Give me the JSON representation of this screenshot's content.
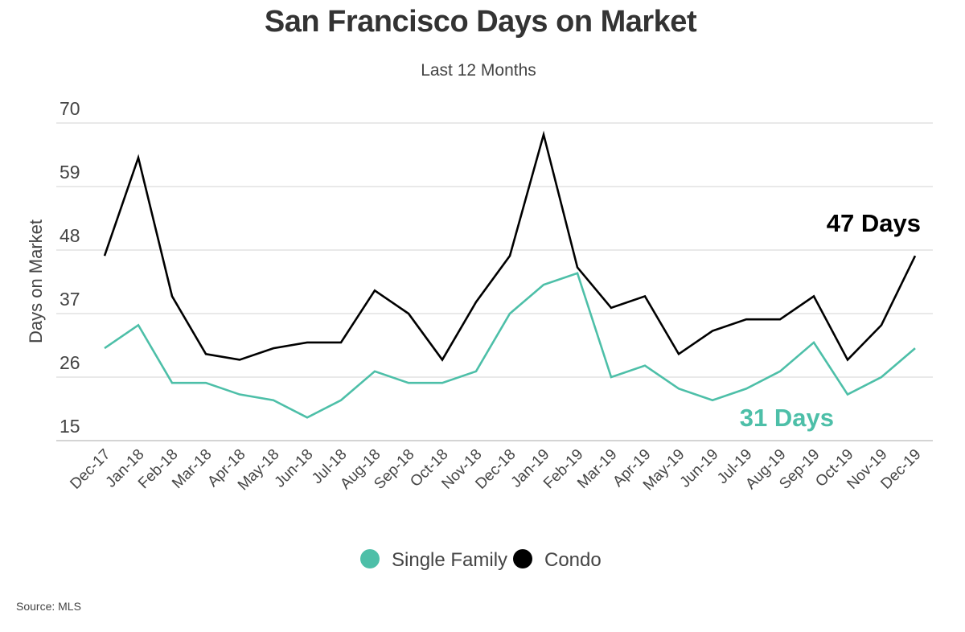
{
  "chart_data": {
    "type": "line",
    "title": "San Francisco Days on Market",
    "subtitle": "Last 12 Months",
    "xlabel": "",
    "ylabel": "Days on Market",
    "ylim": [
      15,
      70
    ],
    "yticks": [
      15,
      26,
      37,
      48,
      59,
      70
    ],
    "grid": true,
    "legend_position": "bottom",
    "categories": [
      "Dec-17",
      "Jan-18",
      "Feb-18",
      "Mar-18",
      "Apr-18",
      "May-18",
      "Jun-18",
      "Jul-18",
      "Aug-18",
      "Sep-18",
      "Oct-18",
      "Nov-18",
      "Dec-18",
      "Jan-19",
      "Feb-19",
      "Mar-19",
      "Apr-19",
      "May-19",
      "Jun-19",
      "Jul-19",
      "Aug-19",
      "Sep-19",
      "Oct-19",
      "Nov-19",
      "Dec-19"
    ],
    "series": [
      {
        "name": "Single Family",
        "color": "#4dbfa8",
        "values": [
          31,
          35,
          25,
          25,
          23,
          22,
          19,
          22,
          27,
          25,
          25,
          27,
          37,
          42,
          44,
          26,
          28,
          24,
          22,
          24,
          27,
          32,
          23,
          26,
          31
        ]
      },
      {
        "name": "Condo",
        "color": "#000000",
        "values": [
          47,
          64,
          40,
          30,
          29,
          31,
          32,
          32,
          41,
          37,
          29,
          39,
          47,
          68,
          45,
          38,
          40,
          30,
          34,
          36,
          36,
          40,
          29,
          35,
          47
        ]
      }
    ],
    "annotations": [
      {
        "text": "47 Days",
        "series": "Condo",
        "color": "#000000"
      },
      {
        "text": "31 Days",
        "series": "Single Family",
        "color": "#4dbfa8"
      }
    ],
    "source": "Source:  MLS"
  }
}
